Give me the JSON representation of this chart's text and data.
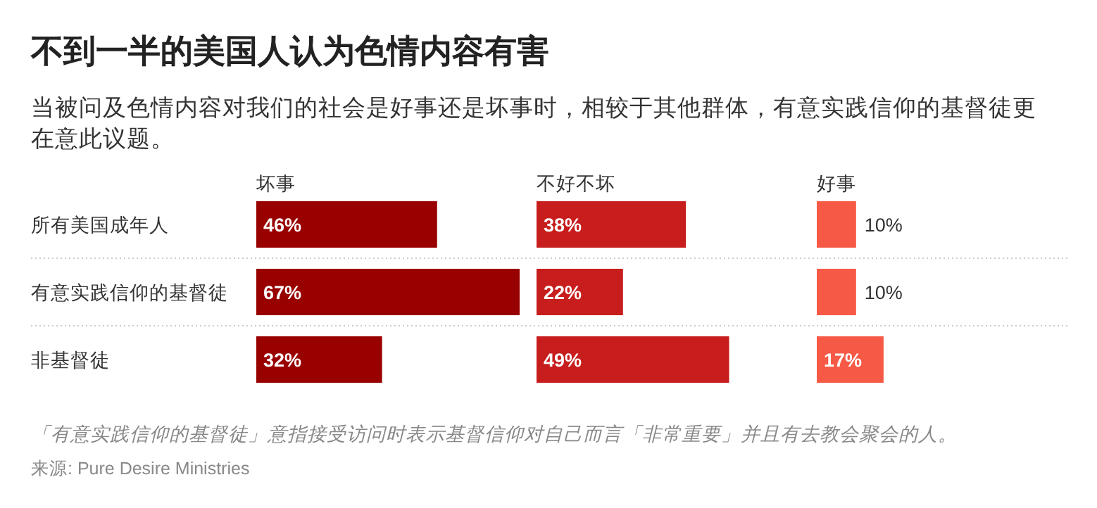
{
  "chart_data": [
    {
      "type": "other",
      "title": "不到一半的美国人认为色情内容有害",
      "subtitle": "当被问及色情内容对我们的社会是好事还是坏事时，相较于其他群体，有意实践信仰的基督徒更在意此议题。",
      "annotations": [
        "「有意实践信仰的基督徒」意指接受访问时表示基督信仰对自己而言「非常重要」并且有去教会聚会的人。",
        "来源: Pure Desire Ministries"
      ]
    },
    {
      "type": "bar",
      "orientation": "horizontal",
      "title": "坏事",
      "categories": [
        "所有美国成年人",
        "有意实践信仰的基督徒",
        "非基督徒"
      ],
      "values": [
        46,
        67,
        32
      ],
      "value_labels": [
        "46%",
        "67%",
        "32%"
      ],
      "color": "#990000",
      "tick_labels": "y"
    },
    {
      "type": "bar",
      "orientation": "horizontal",
      "title": "不好不坏",
      "values": [
        38,
        22,
        49
      ],
      "value_labels": [
        "38%",
        "22%",
        "49%"
      ],
      "color": "#c71e1d",
      "tick_labels": false
    },
    {
      "type": "bar",
      "orientation": "horizontal",
      "title": "好事",
      "values": [
        10,
        10,
        17
      ],
      "value_labels": [
        "10%",
        "10%",
        "17%"
      ],
      "color": "#f65a46",
      "tick_labels": false
    }
  ]
}
